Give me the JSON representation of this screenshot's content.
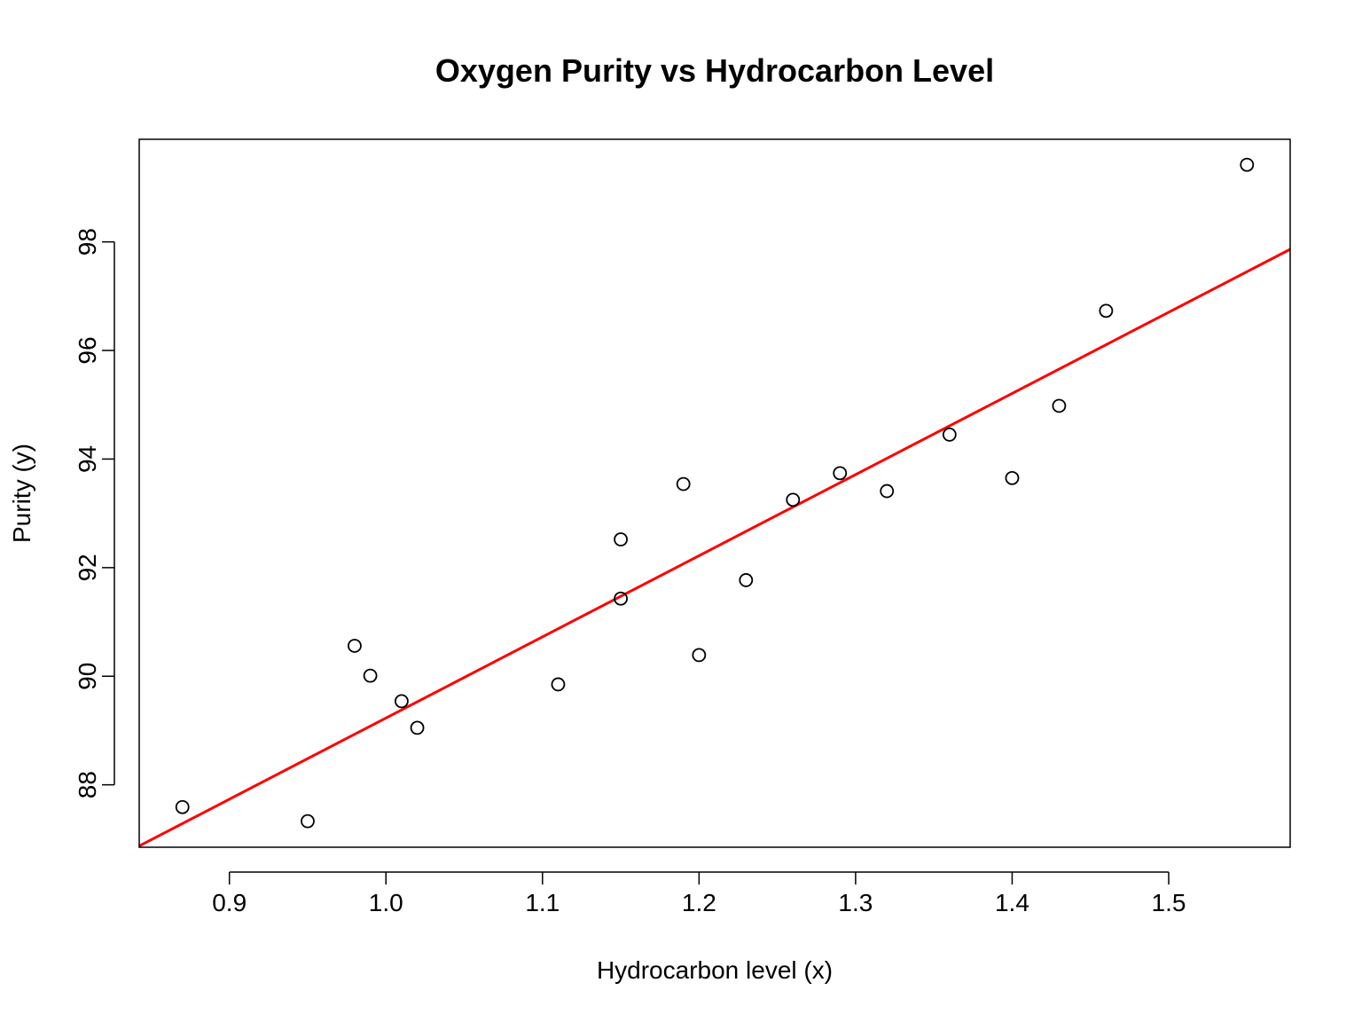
{
  "chart_data": {
    "type": "scatter",
    "title": "Oxygen Purity vs Hydrocarbon Level",
    "xlabel": "Hydrocarbon level (x)",
    "ylabel": "Purity (y)",
    "xlim": [
      0.8424,
      1.5776
    ],
    "ylim": [
      86.8504,
      99.8896
    ],
    "xticks": [
      0.9,
      1.0,
      1.1,
      1.2,
      1.3,
      1.4,
      1.5
    ],
    "xtick_labels": [
      "0.9",
      "1.0",
      "1.1",
      "1.2",
      "1.3",
      "1.4",
      "1.5"
    ],
    "yticks": [
      88,
      90,
      92,
      94,
      96,
      98
    ],
    "ytick_labels": [
      "88",
      "90",
      "92",
      "94",
      "96",
      "98"
    ],
    "grid": false,
    "series": [
      {
        "marker": "open-circle",
        "color": "#000000",
        "x": [
          0.87,
          0.95,
          0.98,
          0.99,
          1.01,
          1.02,
          1.11,
          1.15,
          1.15,
          1.19,
          1.2,
          1.23,
          1.26,
          1.29,
          1.32,
          1.36,
          1.4,
          1.43,
          1.46,
          1.55
        ],
        "y": [
          87.59,
          87.33,
          90.56,
          90.01,
          89.54,
          89.05,
          89.85,
          92.52,
          91.43,
          93.54,
          90.39,
          91.77,
          93.25,
          93.74,
          93.41,
          94.45,
          93.65,
          94.98,
          96.73,
          99.42
        ]
      }
    ],
    "regression_line": {
      "color": "#ff0000",
      "intercept": 74.283,
      "slope": 14.947
    }
  }
}
